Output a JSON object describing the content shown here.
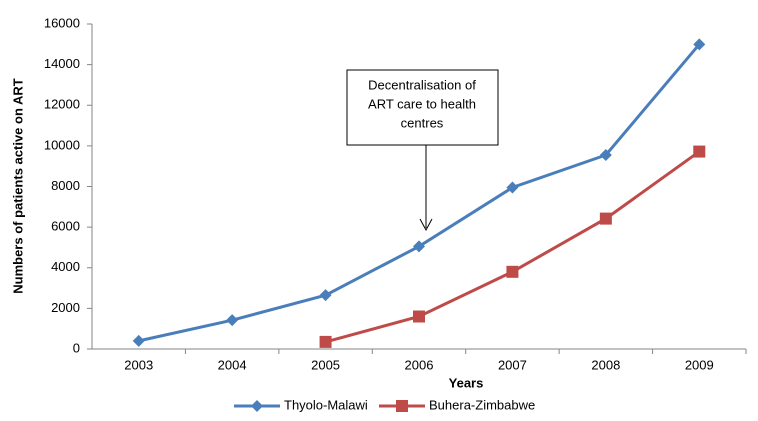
{
  "chart_data": {
    "type": "line",
    "categories": [
      "2003",
      "2004",
      "2005",
      "2006",
      "2007",
      "2008",
      "2009"
    ],
    "series": [
      {
        "name": "Thyolo-Malawi",
        "color": "#4a7ebb",
        "marker": "diamond",
        "values": [
          400,
          1420,
          2650,
          5050,
          7950,
          9550,
          15000
        ]
      },
      {
        "name": "Buhera-Zimbabwe",
        "color": "#be4b48",
        "marker": "square",
        "values": [
          null,
          null,
          350,
          1600,
          3800,
          6420,
          9720
        ]
      }
    ],
    "ylim": [
      0,
      16000
    ],
    "yticks": [
      0,
      2000,
      4000,
      6000,
      8000,
      10000,
      12000,
      14000,
      16000
    ],
    "xlabel": "Years",
    "ylabel": "Numbers of patients active on ART",
    "annotation": {
      "lines": [
        "Decentralisation of",
        "ART care to health",
        "centres"
      ],
      "category": "2006"
    },
    "grid": false,
    "legend": "bottom"
  }
}
